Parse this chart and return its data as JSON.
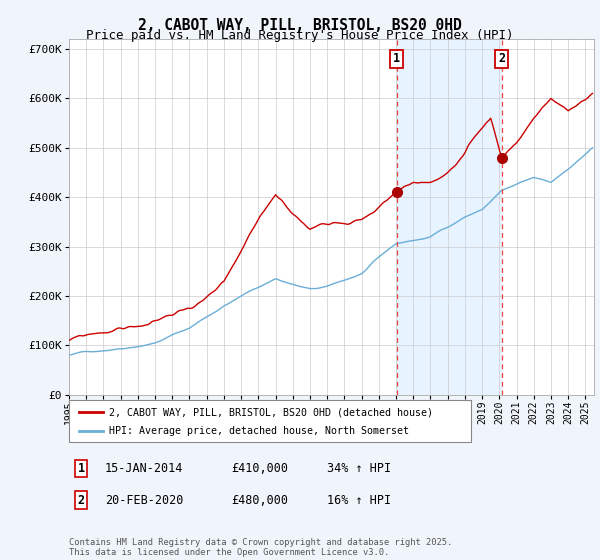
{
  "title": "2, CABOT WAY, PILL, BRISTOL, BS20 0HD",
  "subtitle": "Price paid vs. HM Land Registry's House Price Index (HPI)",
  "ylim": [
    0,
    720000
  ],
  "yticks": [
    0,
    100000,
    200000,
    300000,
    400000,
    500000,
    600000,
    700000
  ],
  "ytick_labels": [
    "£0",
    "£100K",
    "£200K",
    "£300K",
    "£400K",
    "£500K",
    "£600K",
    "£700K"
  ],
  "hpi_color": "#6aaed6",
  "price_color": "#cc0000",
  "bg_color": "#f0f4fb",
  "plot_bg": "#ffffff",
  "shade_color": "#ddeeff",
  "marker1_date": 2014.04,
  "marker1_price": 410000,
  "marker2_date": 2020.13,
  "marker2_price": 480000,
  "legend_label_price": "2, CABOT WAY, PILL, BRISTOL, BS20 0HD (detached house)",
  "legend_label_hpi": "HPI: Average price, detached house, North Somerset",
  "table_row1": [
    "1",
    "15-JAN-2014",
    "£410,000",
    "34% ↑ HPI"
  ],
  "table_row2": [
    "2",
    "20-FEB-2020",
    "£480,000",
    "16% ↑ HPI"
  ],
  "footer": "Contains HM Land Registry data © Crown copyright and database right 2025.\nThis data is licensed under the Open Government Licence v3.0.",
  "title_fontsize": 10.5,
  "subtitle_fontsize": 9,
  "tick_fontsize": 8,
  "xlim_start": 1995.0,
  "xlim_end": 2025.5
}
